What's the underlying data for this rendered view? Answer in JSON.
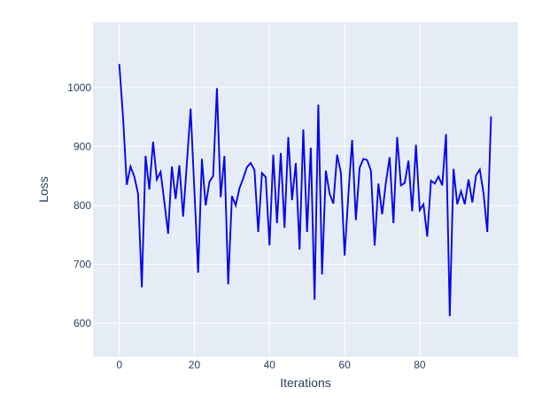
{
  "chart_data": {
    "type": "line",
    "title": "",
    "xlabel": "Iterations",
    "ylabel": "Loss",
    "x_ticks": [
      0,
      20,
      40,
      60,
      80
    ],
    "y_ticks": [
      600,
      700,
      800,
      900,
      1000
    ],
    "x_range": [
      -7,
      106.2
    ],
    "y_range": [
      543,
      1111
    ],
    "grid": true,
    "legend": "none",
    "plot_bg": "#e5ecf6",
    "paper_bg": "#ffffff",
    "grid_color": "#ffffff",
    "label_color": "#2a3f5f",
    "series": [
      {
        "name": "loss",
        "color": "#0606e9",
        "x_start": 0,
        "x_step": 1,
        "values": [
          1040,
          950,
          835,
          866,
          849,
          820,
          661,
          884,
          827,
          908,
          844,
          857,
          806,
          752,
          866,
          811,
          868,
          781,
          872,
          964,
          825,
          686,
          879,
          800,
          840,
          850,
          999,
          814,
          884,
          666,
          816,
          800,
          829,
          846,
          865,
          872,
          860,
          755,
          855,
          848,
          732,
          886,
          770,
          889,
          762,
          916,
          809,
          872,
          725,
          929,
          755,
          898,
          640,
          971,
          683,
          859,
          820,
          803,
          886,
          856,
          715,
          818,
          911,
          775,
          864,
          879,
          877,
          859,
          732,
          837,
          785,
          839,
          882,
          770,
          916,
          834,
          838,
          876,
          790,
          903,
          792,
          802,
          747,
          842,
          837,
          849,
          834,
          921,
          612,
          862,
          802,
          824,
          802,
          844,
          805,
          851,
          861,
          820,
          755,
          951
        ]
      }
    ]
  }
}
